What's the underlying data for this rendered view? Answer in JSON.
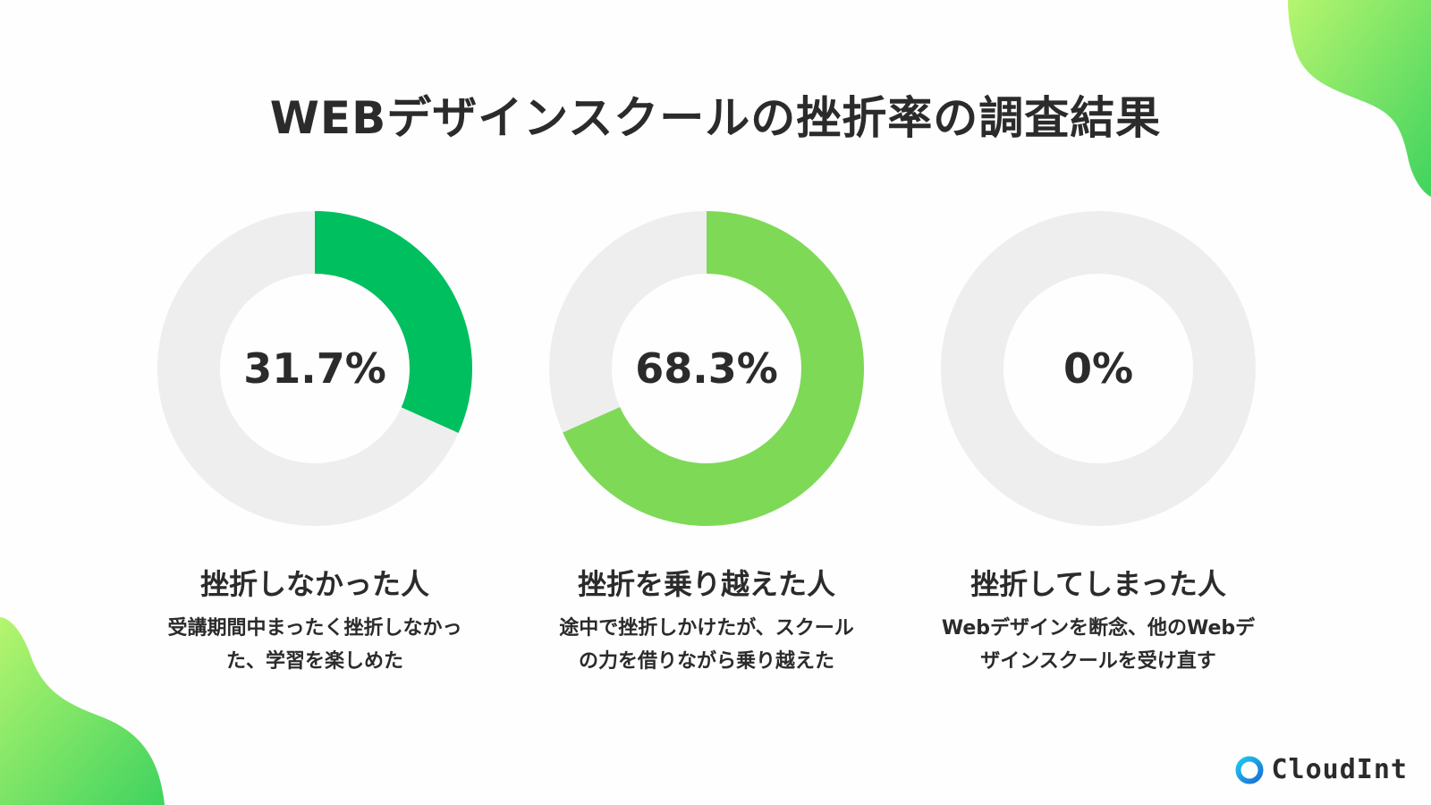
{
  "title": "WEBデザインスクールの挫折率の調査結果",
  "colors": {
    "track": "#eeeeee",
    "green_dark": "#00bf5f",
    "green_light": "#7ed957",
    "blob_start": "#b6f56e",
    "blob_end": "#3fd35f"
  },
  "chart_data": [
    {
      "type": "pie",
      "value_label": "31.7%",
      "values": [
        31.7,
        68.3
      ],
      "highlight_color": "#00bf5f",
      "label": "挫折しなかった人",
      "description_lines": [
        "受講期間中まったく挫折しなかっ",
        "た、学習を楽しめた"
      ]
    },
    {
      "type": "pie",
      "value_label": "68.3%",
      "values": [
        68.3,
        31.7
      ],
      "highlight_color": "#7ed957",
      "label": "挫折を乗り越えた人",
      "description_lines": [
        "途中で挫折しかけたが、スクール",
        "の力を借りながら乗り越えた"
      ]
    },
    {
      "type": "pie",
      "value_label": "0%",
      "values": [
        0,
        100
      ],
      "highlight_color": "#7ed957",
      "label": "挫折してしまった人",
      "description_lines": [
        "Webデザインを断念、他のWebデ",
        "ザインスクールを受け直す"
      ]
    }
  ],
  "logo": {
    "text": "CloudInt",
    "icon": "cloudint-ring-icon"
  }
}
